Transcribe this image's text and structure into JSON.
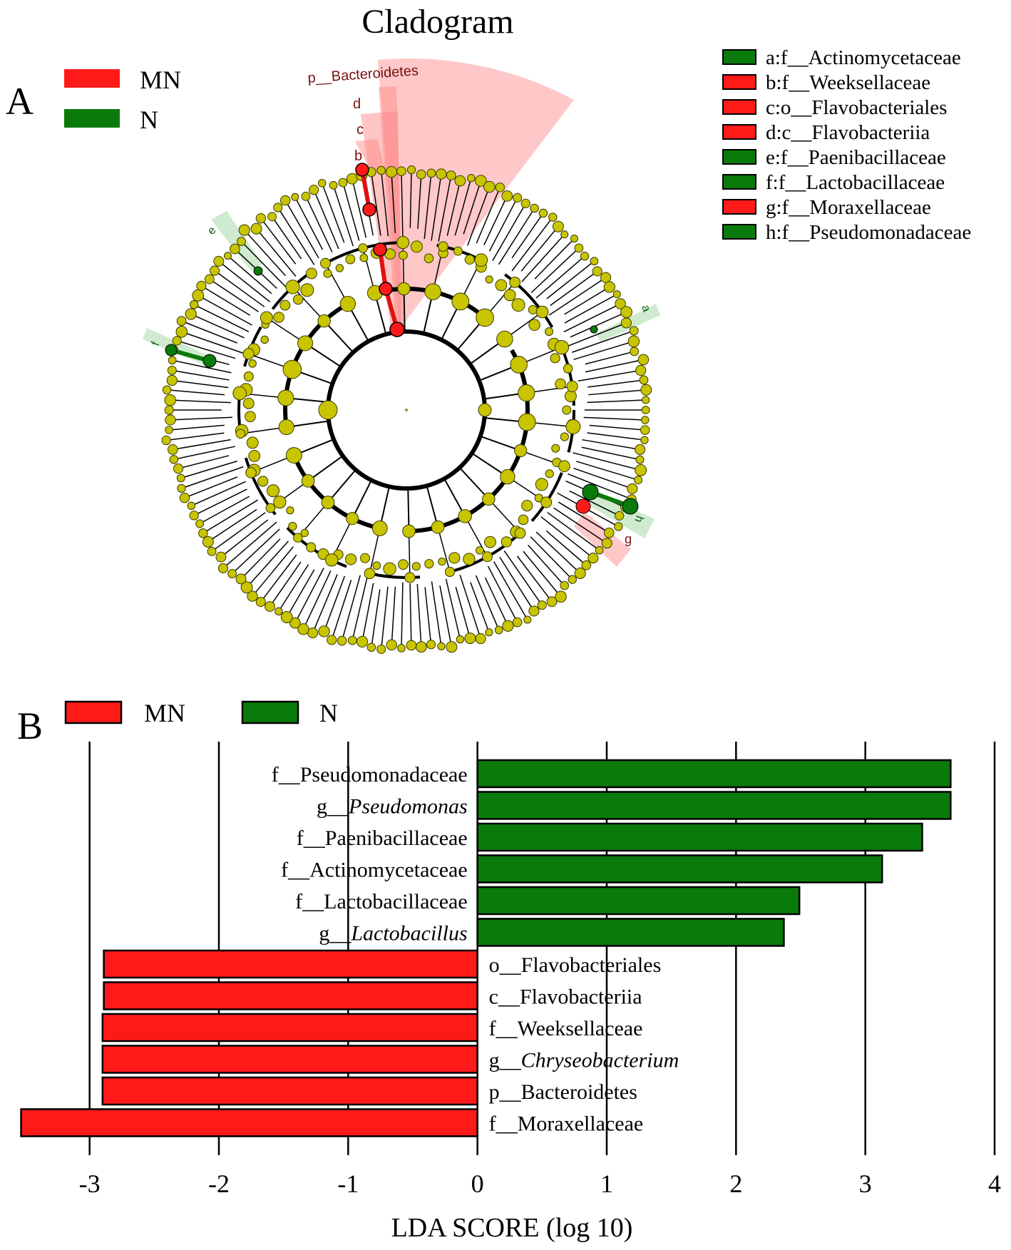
{
  "panel_a": {
    "panel_letter": "A",
    "title": "Cladogram",
    "group_legend": [
      {
        "label": "MN",
        "color": "#ff1a1a"
      },
      {
        "label": "N",
        "color": "#0a7a0a"
      }
    ],
    "clade_legend": [
      {
        "label": "a:f__Actinomycetaceae",
        "color": "#0a7a0a"
      },
      {
        "label": "b:f__Weeksellaceae",
        "color": "#ff1a1a"
      },
      {
        "label": "c:o__Flavobacteriales",
        "color": "#ff1a1a"
      },
      {
        "label": "d:c__Flavobacteriia",
        "color": "#ff1a1a"
      },
      {
        "label": "e:f__Paenibacillaceae",
        "color": "#0a7a0a"
      },
      {
        "label": "f:f__Lactobacillaceae",
        "color": "#0a7a0a"
      },
      {
        "label": "g:f__Moraxellaceae",
        "color": "#ff1a1a"
      },
      {
        "label": "h:f__Pseudomonadaceae",
        "color": "#0a7a0a"
      }
    ],
    "tree_labels": {
      "phylum": "p__Bacteroidetes",
      "d": "d",
      "c": "c",
      "b": "b",
      "e": "e",
      "f": "f",
      "a": "a",
      "g": "g",
      "h": "h"
    },
    "node_color": "#c8c400"
  },
  "panel_b": {
    "panel_letter": "B",
    "group_legend": [
      {
        "label": "MN",
        "color": "#ff1a1a"
      },
      {
        "label": "N",
        "color": "#0a7a0a"
      }
    ]
  },
  "chart_data": {
    "type": "bar",
    "orientation": "horizontal",
    "xlabel": "LDA SCORE (log 10)",
    "xlim": [
      -3.5,
      4
    ],
    "xticks": [
      -3,
      -2,
      -1,
      0,
      1,
      2,
      3,
      4
    ],
    "grid": "vertical lines at integer ticks",
    "colors": {
      "MN": "#ff1a1a",
      "N": "#0a7a0a"
    },
    "bars": [
      {
        "prefix": "f__",
        "name": "Pseudomonadaceae",
        "italic": false,
        "value": 3.66,
        "group": "N"
      },
      {
        "prefix": "g__",
        "name": "Pseudomonas",
        "italic": true,
        "value": 3.66,
        "group": "N"
      },
      {
        "prefix": "f__",
        "name": "Paenibacillaceae",
        "italic": false,
        "value": 3.44,
        "group": "N"
      },
      {
        "prefix": "f__",
        "name": "Actinomycetaceae",
        "italic": false,
        "value": 3.13,
        "group": "N"
      },
      {
        "prefix": "f__",
        "name": "Lactobacillaceae",
        "italic": false,
        "value": 2.49,
        "group": "N"
      },
      {
        "prefix": "g__",
        "name": "Lactobacillus",
        "italic": true,
        "value": 2.37,
        "group": "N"
      },
      {
        "prefix": "o__",
        "name": "Flavobacteriales",
        "italic": false,
        "value": -2.89,
        "group": "MN"
      },
      {
        "prefix": "c__",
        "name": "Flavobacteriia",
        "italic": false,
        "value": -2.89,
        "group": "MN"
      },
      {
        "prefix": "f__",
        "name": "Weeksellaceae",
        "italic": false,
        "value": -2.9,
        "group": "MN"
      },
      {
        "prefix": "g__",
        "name": "Chryseobacterium",
        "italic": true,
        "value": -2.9,
        "group": "MN"
      },
      {
        "prefix": "p__",
        "name": "Bacteroidetes",
        "italic": false,
        "value": -2.9,
        "group": "MN"
      },
      {
        "prefix": "f__",
        "name": "Moraxellaceae",
        "italic": false,
        "value": -3.53,
        "group": "MN"
      }
    ]
  }
}
